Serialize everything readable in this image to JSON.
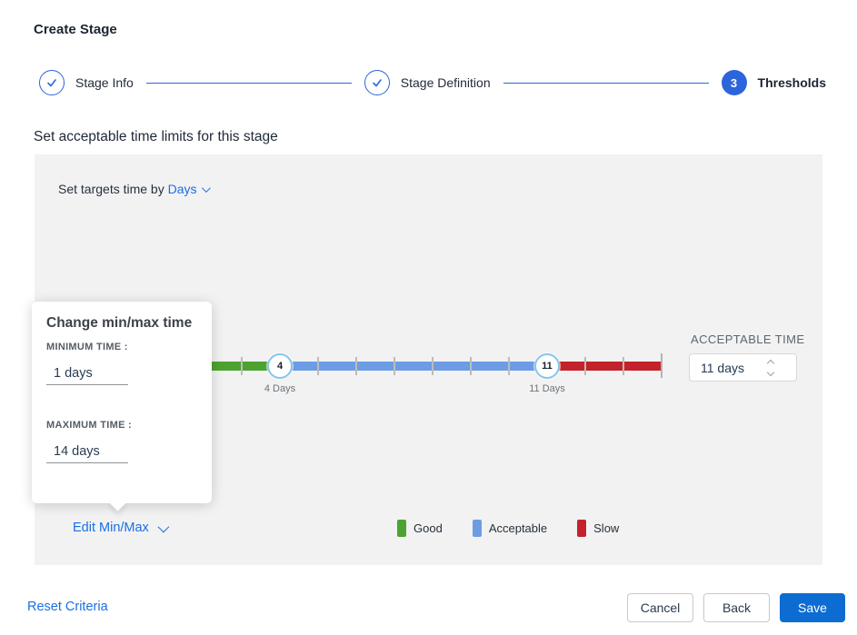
{
  "header": {
    "title": "Create Stage"
  },
  "stepper": {
    "steps": [
      {
        "label": "Stage Info",
        "state": "complete"
      },
      {
        "label": "Stage Definition",
        "state": "complete"
      },
      {
        "label": "Thresholds",
        "state": "active",
        "number": "3"
      }
    ]
  },
  "content": {
    "heading": "Set acceptable time limits for this stage",
    "set_targets_prefix": "Set targets time by",
    "set_targets_unit": "Days"
  },
  "popup": {
    "title": "Change min/max time",
    "min_label": "MINIMUM TIME :",
    "min_value": "1 days",
    "max_label": "MAXIMUM TIME :",
    "max_value": "14 days"
  },
  "slider": {
    "min_day": 1,
    "max_day": 14,
    "good_end_day": 4,
    "acceptable_end_day": 11,
    "low_handle_value": "4",
    "high_handle_value": "11",
    "low_handle_label": "4 Days",
    "high_handle_label": "11 Days",
    "colors": {
      "good": "#4da32f",
      "acceptable": "#6e9ce4",
      "slow": "#c4222a"
    }
  },
  "acceptable_time": {
    "label": "ACCEPTABLE TIME",
    "value": "11 days"
  },
  "edit_minmax_label": "Edit Min/Max",
  "legend": [
    {
      "label": "Good",
      "color": "#4da32f"
    },
    {
      "label": "Acceptable",
      "color": "#6e9ce4"
    },
    {
      "label": "Slow",
      "color": "#c4222a"
    }
  ],
  "footer": {
    "reset_label": "Reset Criteria",
    "cancel_label": "Cancel",
    "back_label": "Back",
    "save_label": "Save"
  }
}
